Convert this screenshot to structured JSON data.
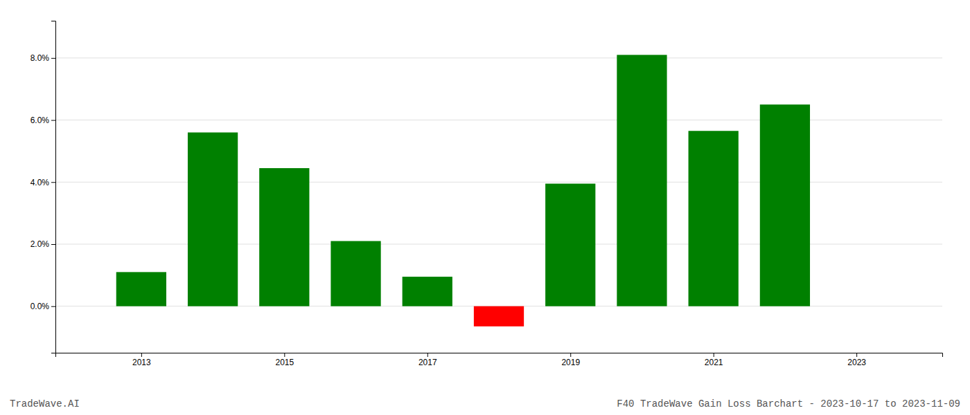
{
  "chart_data": {
    "type": "bar",
    "title": "F40 TradeWave Gain Loss Barchart - 2023-10-17 to 2023-11-09",
    "annotations": [
      "TradeWave.AI"
    ],
    "x": [
      2013,
      2014,
      2015,
      2016,
      2017,
      2018,
      2019,
      2020,
      2021,
      2022
    ],
    "values": [
      0.011,
      0.056,
      0.0445,
      0.021,
      0.0095,
      -0.0065,
      0.0395,
      0.081,
      0.0565,
      0.065
    ],
    "colors": [
      "#008000",
      "#008000",
      "#008000",
      "#008000",
      "#008000",
      "#ff0000",
      "#008000",
      "#008000",
      "#008000",
      "#008000"
    ],
    "xlim": [
      2011.8,
      2024.2
    ],
    "xticks": [
      2013,
      2015,
      2017,
      2019,
      2021,
      2023
    ],
    "ylim": [
      -0.015,
      0.092
    ],
    "yticks": [
      {
        "value": 0.0,
        "label": "0.0%"
      },
      {
        "value": 0.02,
        "label": "2.0%"
      },
      {
        "value": 0.04,
        "label": "4.0%"
      },
      {
        "value": 0.06,
        "label": "6.0%"
      },
      {
        "value": 0.08,
        "label": "8.0%"
      }
    ],
    "grid": true
  }
}
